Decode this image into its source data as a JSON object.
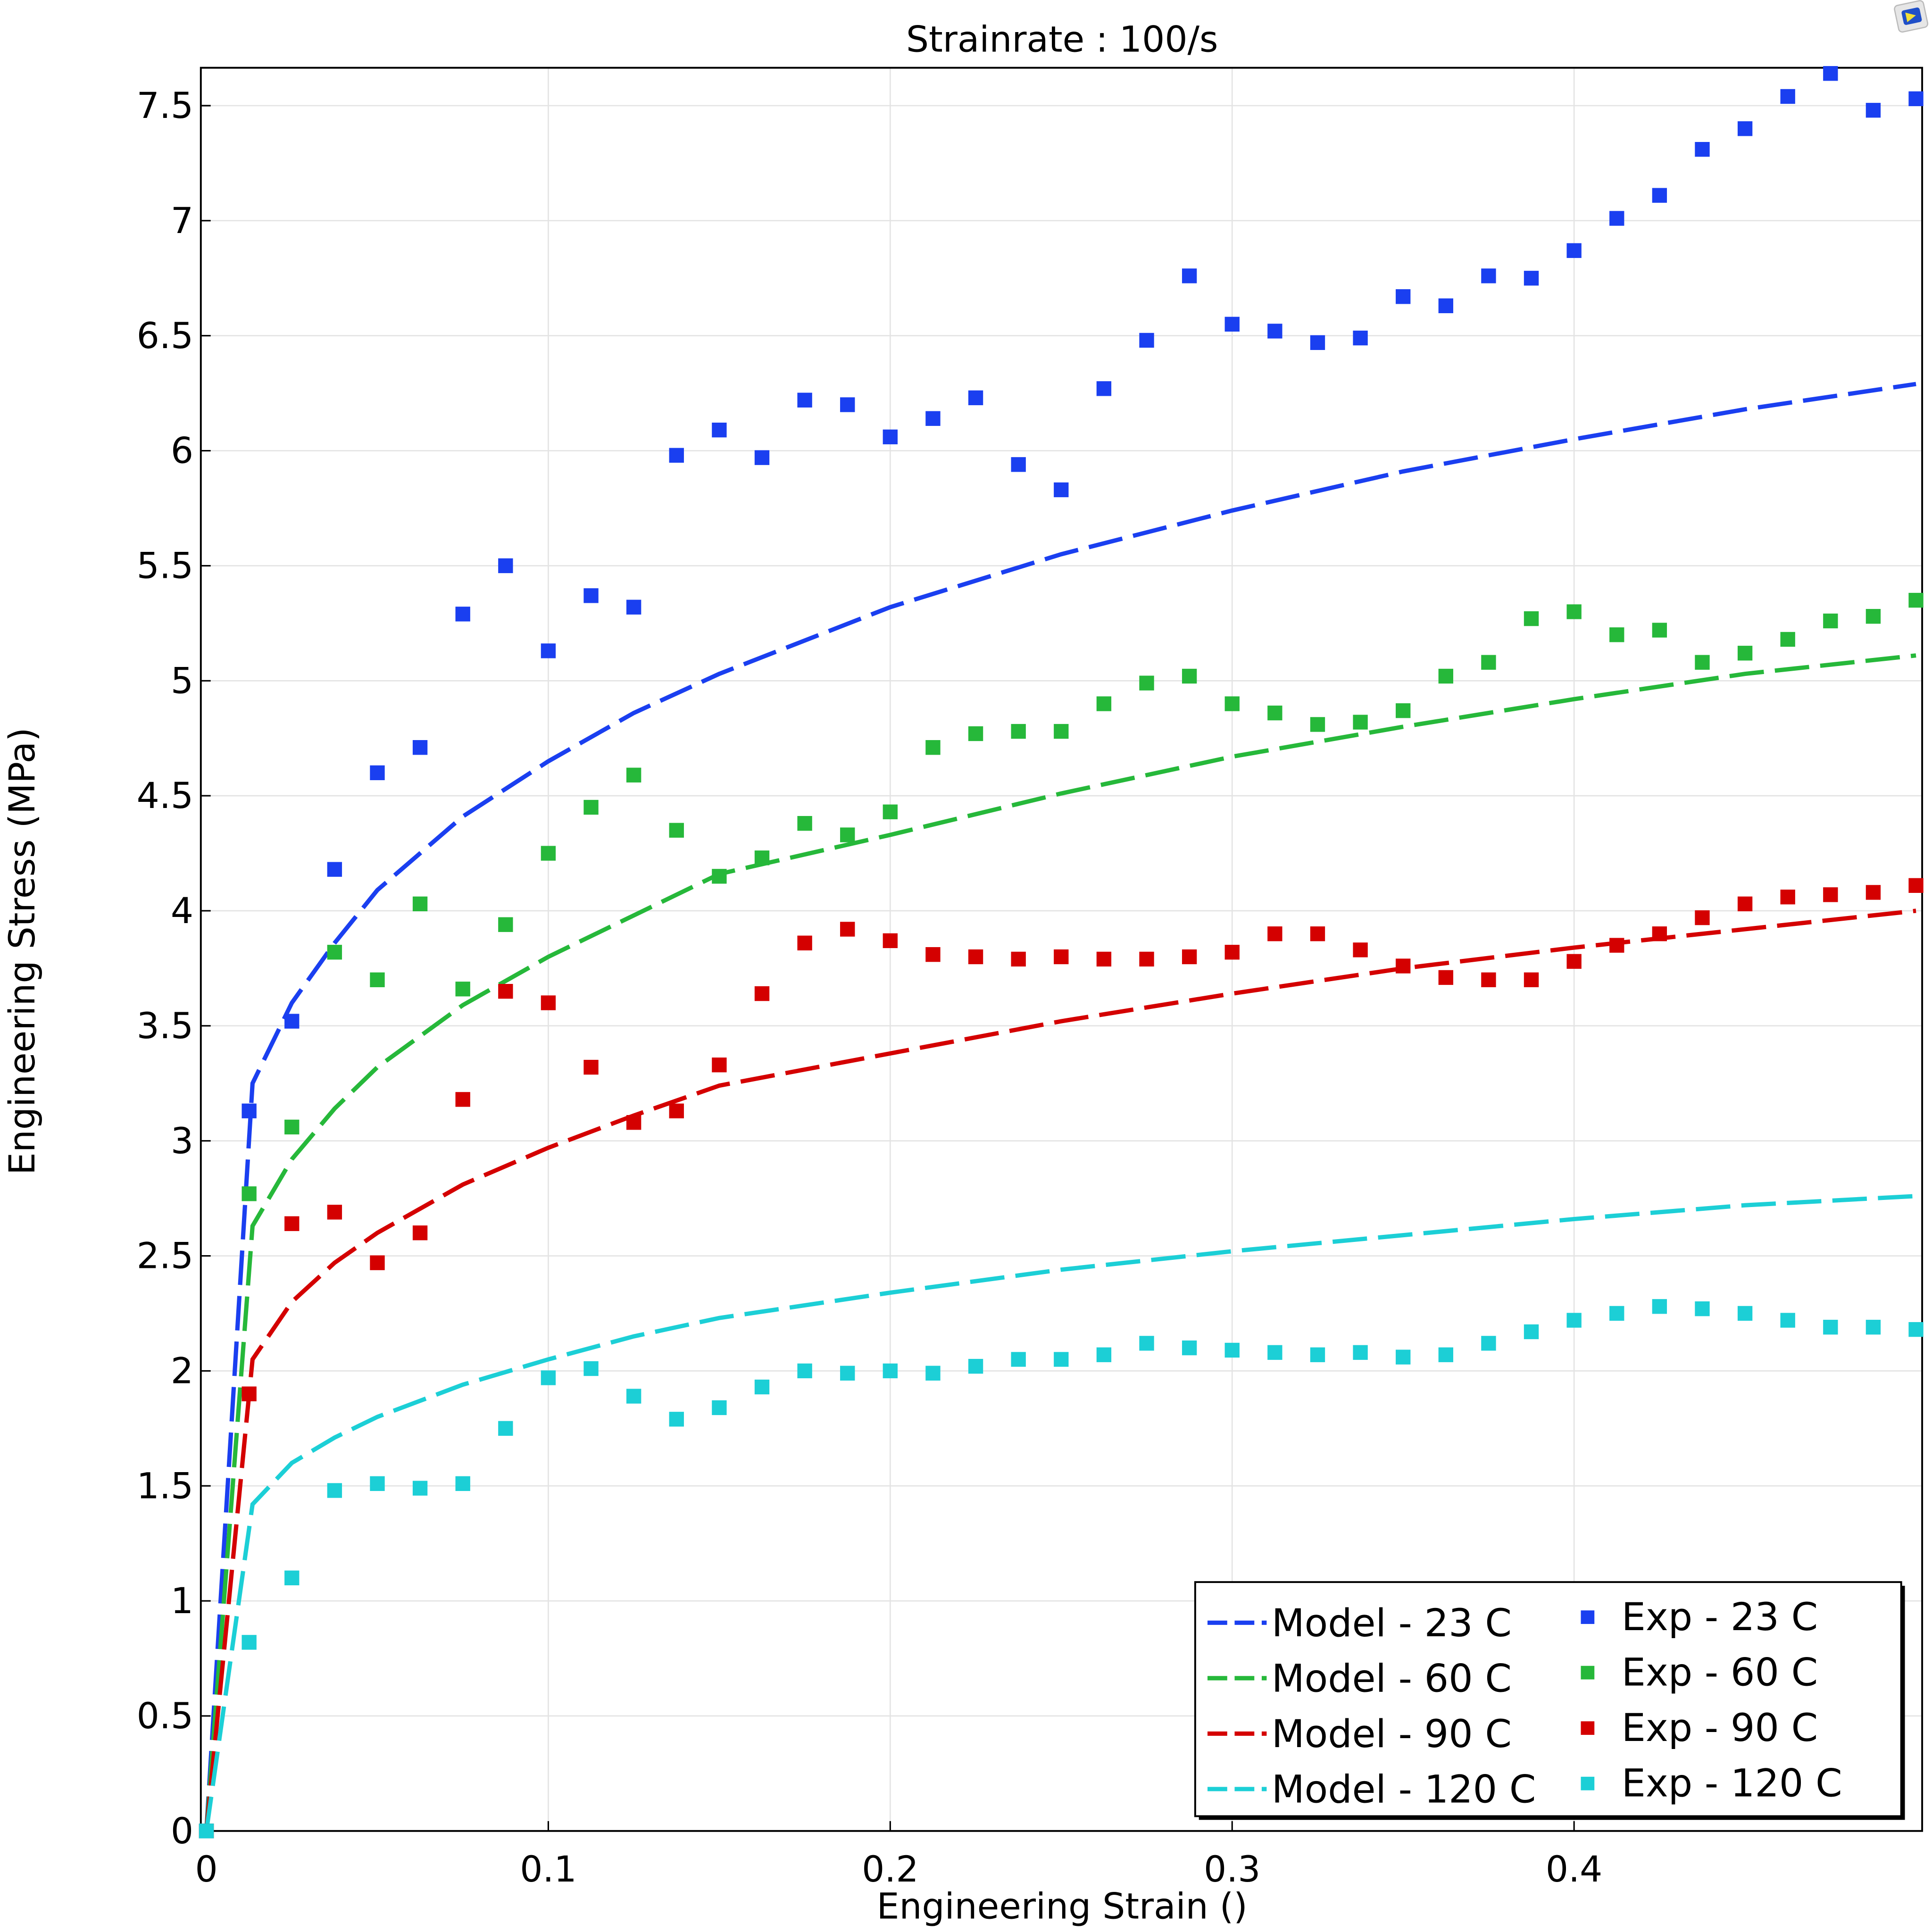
{
  "chart_data": {
    "type": "line",
    "title": "Strainrate : 100/s",
    "xlabel": "Engineering Strain ()",
    "ylabel": "Engineering Stress (MPa)",
    "xlim": [
      0,
      0.502
    ],
    "ylim": [
      0,
      7.66
    ],
    "xticks": [
      "0",
      "0.1",
      "0.2",
      "0.3",
      "0.4"
    ],
    "xtick_values": [
      0,
      0.1,
      0.2,
      0.3,
      0.4
    ],
    "yticks": [
      "0",
      "0.5",
      "1",
      "1.5",
      "2",
      "2.5",
      "3",
      "3.5",
      "4",
      "4.5",
      "5",
      "5.5",
      "6",
      "6.5",
      "7",
      "7.5"
    ],
    "ytick_values": [
      0,
      0.5,
      1,
      1.5,
      2,
      2.5,
      3,
      3.5,
      4,
      4.5,
      5,
      5.5,
      6,
      6.5,
      7,
      7.5
    ],
    "grid": true,
    "legend_position": "bottom-right",
    "model_x": [
      0,
      0.0135,
      0.025,
      0.0375,
      0.05,
      0.075,
      0.1,
      0.125,
      0.15,
      0.2,
      0.25,
      0.3,
      0.35,
      0.4,
      0.45,
      0.5
    ],
    "exp_x": [
      0,
      0.0125,
      0.025,
      0.0375,
      0.05,
      0.0625,
      0.075,
      0.0875,
      0.1,
      0.1125,
      0.125,
      0.1375,
      0.15,
      0.1625,
      0.175,
      0.1875,
      0.2,
      0.2125,
      0.225,
      0.2375,
      0.25,
      0.2625,
      0.275,
      0.2875,
      0.3,
      0.3125,
      0.325,
      0.3375,
      0.35,
      0.3625,
      0.375,
      0.3875,
      0.4,
      0.4125,
      0.425,
      0.4375,
      0.45,
      0.4625,
      0.475,
      0.4875,
      0.5
    ],
    "series": [
      {
        "name": "Model - 23 C",
        "kind": "model",
        "color": "#1a3ff0",
        "values": [
          0,
          3.25,
          3.6,
          3.86,
          4.09,
          4.41,
          4.65,
          4.86,
          5.03,
          5.32,
          5.55,
          5.74,
          5.91,
          6.05,
          6.18,
          6.29
        ]
      },
      {
        "name": "Model - 60 C",
        "kind": "model",
        "color": "#26b83a",
        "values": [
          0,
          2.63,
          2.92,
          3.14,
          3.32,
          3.59,
          3.8,
          3.98,
          4.16,
          4.33,
          4.51,
          4.67,
          4.8,
          4.92,
          5.03,
          5.11
        ]
      },
      {
        "name": "Model - 90 C",
        "kind": "model",
        "color": "#d40000",
        "values": [
          0,
          2.05,
          2.3,
          2.47,
          2.6,
          2.81,
          2.97,
          3.11,
          3.24,
          3.38,
          3.52,
          3.64,
          3.75,
          3.84,
          3.92,
          4.0
        ]
      },
      {
        "name": "Model - 120 C",
        "kind": "model",
        "color": "#1ccfd6",
        "values": [
          0,
          1.42,
          1.6,
          1.71,
          1.8,
          1.94,
          2.05,
          2.15,
          2.23,
          2.34,
          2.44,
          2.52,
          2.59,
          2.66,
          2.72,
          2.76
        ]
      },
      {
        "name": "Exp - 23 C",
        "kind": "exp",
        "color": "#1a3ff0",
        "values": [
          0,
          3.13,
          3.52,
          4.18,
          4.6,
          4.71,
          5.29,
          5.5,
          5.13,
          5.37,
          5.32,
          5.98,
          6.09,
          5.97,
          6.22,
          6.2,
          6.06,
          6.14,
          6.23,
          5.94,
          5.83,
          6.27,
          6.48,
          6.76,
          6.55,
          6.52,
          6.47,
          6.49,
          6.67,
          6.63,
          6.76,
          6.75,
          6.87,
          7.01,
          7.11,
          7.31,
          7.4,
          7.54,
          7.64,
          7.48,
          7.53
        ]
      },
      {
        "name": "Exp - 60 C",
        "kind": "exp",
        "color": "#26b83a",
        "values": [
          0,
          2.77,
          3.06,
          3.82,
          3.7,
          4.03,
          3.66,
          3.94,
          4.25,
          4.45,
          4.59,
          4.35,
          4.15,
          4.23,
          4.38,
          4.33,
          4.43,
          4.71,
          4.77,
          4.78,
          4.78,
          4.9,
          4.99,
          5.02,
          4.9,
          4.86,
          4.81,
          4.82,
          4.87,
          5.02,
          5.08,
          5.27,
          5.3,
          5.2,
          5.22,
          5.08,
          5.12,
          5.18,
          5.26,
          5.28,
          5.35
        ]
      },
      {
        "name": "Exp - 90 C",
        "kind": "exp",
        "color": "#d40000",
        "values": [
          0,
          1.9,
          2.64,
          2.69,
          2.47,
          2.6,
          3.18,
          3.65,
          3.6,
          3.32,
          3.08,
          3.13,
          3.33,
          3.64,
          3.86,
          3.92,
          3.87,
          3.81,
          3.8,
          3.79,
          3.8,
          3.79,
          3.79,
          3.8,
          3.82,
          3.9,
          3.9,
          3.83,
          3.76,
          3.71,
          3.7,
          3.7,
          3.78,
          3.85,
          3.9,
          3.97,
          4.03,
          4.06,
          4.07,
          4.08,
          4.11
        ]
      },
      {
        "name": "Exp - 120 C",
        "kind": "exp",
        "color": "#1ccfd6",
        "values": [
          0,
          0.82,
          1.1,
          1.48,
          1.51,
          1.49,
          1.51,
          1.75,
          1.97,
          2.01,
          1.89,
          1.79,
          1.84,
          1.93,
          2.0,
          1.99,
          2.0,
          1.99,
          2.02,
          2.05,
          2.05,
          2.07,
          2.12,
          2.1,
          2.09,
          2.08,
          2.07,
          2.08,
          2.06,
          2.07,
          2.12,
          2.17,
          2.22,
          2.25,
          2.28,
          2.27,
          2.25,
          2.22,
          2.19,
          2.19,
          2.18
        ]
      }
    ]
  },
  "toolbar_icon": "graphics-window-icon"
}
